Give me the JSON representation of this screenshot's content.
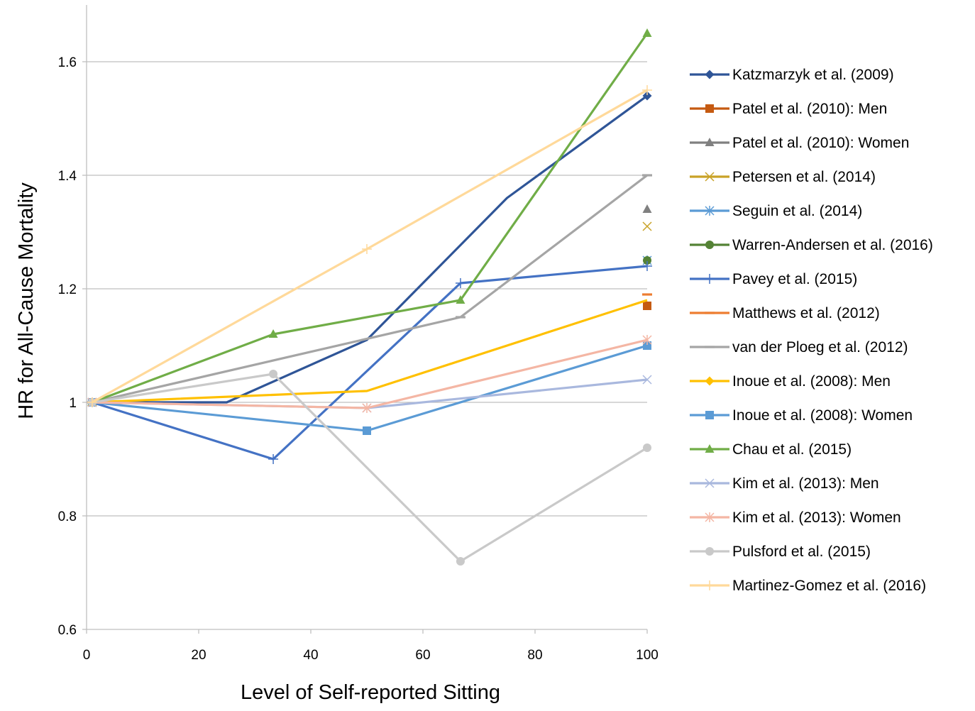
{
  "chart_data": {
    "type": "scatter",
    "title": "",
    "xlabel": "Level of Self-reported Sitting",
    "ylabel": "HR for All-Cause Mortality",
    "xlim": [
      0,
      100
    ],
    "ylim": [
      0.6,
      1.7
    ],
    "x_ticks": [
      0,
      20,
      40,
      60,
      80,
      100
    ],
    "y_ticks": [
      0.6,
      0.8,
      1,
      1.2,
      1.4,
      1.6
    ],
    "x_tick_labels": [
      "0",
      "20",
      "40",
      "60",
      "80",
      "100"
    ],
    "y_tick_labels": [
      "0.6",
      "0.8",
      "1",
      "1.2",
      "1.4",
      "1.6"
    ],
    "grid": "horizontal",
    "legend_position": "right",
    "series": [
      {
        "name": "Katzmarzyk et al. (2009)",
        "color": "#2F5597",
        "marker": "diamond",
        "line": true,
        "marker_at": [
          4
        ],
        "points": [
          [
            1,
            1.0
          ],
          [
            25,
            1.0
          ],
          [
            50,
            1.11
          ],
          [
            75,
            1.36
          ],
          [
            100,
            1.54
          ]
        ]
      },
      {
        "name": "Patel et al. (2010): Men",
        "color": "#C55A11",
        "marker": "square",
        "line": true,
        "points": [
          [
            1,
            1.0
          ],
          [
            100,
            1.17
          ]
        ]
      },
      {
        "name": "Patel et al. (2010): Women",
        "color": "#808080",
        "marker": "triangle",
        "line": true,
        "points": [
          [
            1,
            1.0
          ],
          [
            100,
            1.34
          ]
        ]
      },
      {
        "name": "Petersen et al. (2014)",
        "color": "#C9A227",
        "marker": "x",
        "line": true,
        "points": [
          [
            1,
            1.0
          ],
          [
            100,
            1.31
          ]
        ]
      },
      {
        "name": "Seguin et al. (2014)",
        "color": "#5B9BD5",
        "marker": "asterisk",
        "line": true,
        "points": [
          [
            1,
            1.0
          ],
          [
            100,
            1.25
          ]
        ]
      },
      {
        "name": "Warren-Andersen et al. (2016)",
        "color": "#548235",
        "marker": "circle",
        "line": true,
        "points": [
          [
            1,
            1.0
          ],
          [
            100,
            1.25
          ]
        ]
      },
      {
        "name": "Pavey et al. (2015)",
        "color": "#4472C4",
        "marker": "plus",
        "line": true,
        "points": [
          [
            1,
            1.0
          ],
          [
            33.3,
            0.9
          ],
          [
            66.7,
            1.21
          ],
          [
            100,
            1.24
          ]
        ]
      },
      {
        "name": "Matthews et al. (2012)",
        "color": "#ED7D31",
        "marker": "dash",
        "line": true,
        "points": [
          [
            1,
            1.0
          ],
          [
            100,
            1.19
          ]
        ]
      },
      {
        "name": "van der Ploeg et al. (2012)",
        "color": "#A5A5A5",
        "marker": "dash",
        "line": true,
        "points": [
          [
            1,
            1.0
          ],
          [
            66.7,
            1.15
          ],
          [
            100,
            1.4
          ]
        ]
      },
      {
        "name": "Inoue et al. (2008): Men",
        "color": "#FFC000",
        "marker": "diamond",
        "line": true,
        "marker_at": [
          3
        ],
        "points": [
          [
            1,
            1.0
          ],
          [
            50,
            1.02
          ],
          [
            100,
            1.18
          ]
        ]
      },
      {
        "name": "Inoue et al. (2008): Women",
        "color": "#5B9BD5",
        "marker": "square",
        "line": true,
        "points": [
          [
            1,
            1.0
          ],
          [
            50,
            0.95
          ],
          [
            100,
            1.1
          ]
        ]
      },
      {
        "name": "Chau et al. (2015)",
        "color": "#70AD47",
        "marker": "triangle",
        "line": true,
        "points": [
          [
            1,
            1.0
          ],
          [
            33.3,
            1.12
          ],
          [
            66.7,
            1.18
          ],
          [
            100,
            1.65
          ]
        ]
      },
      {
        "name": "Kim et al. (2013): Men",
        "color": "#A9B8DE",
        "marker": "x",
        "line": true,
        "points": [
          [
            1,
            1.0
          ],
          [
            50,
            0.99
          ],
          [
            100,
            1.04
          ]
        ]
      },
      {
        "name": "Kim et al. (2013): Women",
        "color": "#F4B6A4",
        "marker": "asterisk",
        "line": true,
        "points": [
          [
            1,
            1.0
          ],
          [
            50,
            0.99
          ],
          [
            100,
            1.11
          ]
        ]
      },
      {
        "name": "Pulsford et al. (2015)",
        "color": "#C9C9C9",
        "marker": "circle",
        "line": true,
        "points": [
          [
            1,
            1.0
          ],
          [
            33.3,
            1.05
          ],
          [
            66.7,
            0.72
          ],
          [
            100,
            0.92
          ]
        ]
      },
      {
        "name": "Martinez-Gomez et al. (2016)",
        "color": "#FFD99A",
        "marker": "plus",
        "line": true,
        "points": [
          [
            1,
            1.0
          ],
          [
            50,
            1.27
          ],
          [
            100,
            1.55
          ]
        ]
      }
    ]
  }
}
